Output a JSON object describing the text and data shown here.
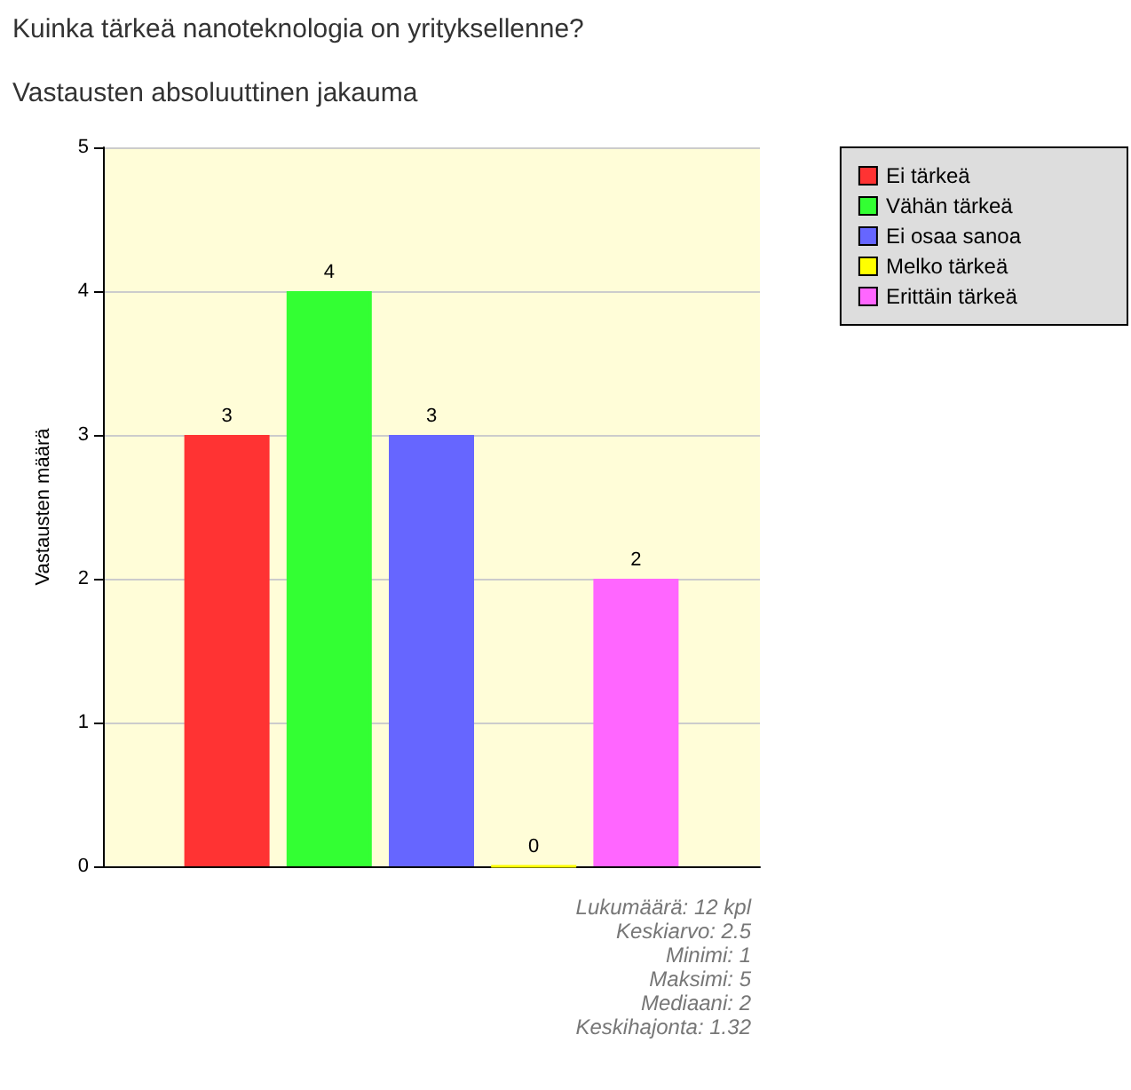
{
  "chart_data": {
    "type": "bar",
    "title": "Kuinka tärkeä nanoteknologia on yrityksellenne?",
    "subtitle": "Vastausten absoluuttinen jakauma",
    "ylabel": "Vastausten määrä",
    "categories": [
      null
    ],
    "series": [
      {
        "name": "Ei tärkeä",
        "color": "#ff3333",
        "values": [
          3
        ]
      },
      {
        "name": "Vähän tärkeä",
        "color": "#33ff33",
        "values": [
          4
        ]
      },
      {
        "name": "Ei osaa sanoa",
        "color": "#6666ff",
        "values": [
          3
        ]
      },
      {
        "name": "Melko tärkeä",
        "color": "#ffff00",
        "values": [
          0
        ]
      },
      {
        "name": "Erittäin tärkeä",
        "color": "#ff66ff",
        "values": [
          2
        ]
      }
    ],
    "ylim": [
      0,
      5
    ],
    "yticks": [
      0,
      1,
      2,
      3,
      4,
      5
    ],
    "grid": "y",
    "legend": "top right",
    "data_labels": true,
    "annotations": [
      "Lukumäärä: 12 kpl",
      "Keskiarvo: 2.5",
      "Minimi: 1",
      "Maksimi: 5",
      "Mediaani: 2",
      "Keskihajonta: 1.32"
    ]
  }
}
